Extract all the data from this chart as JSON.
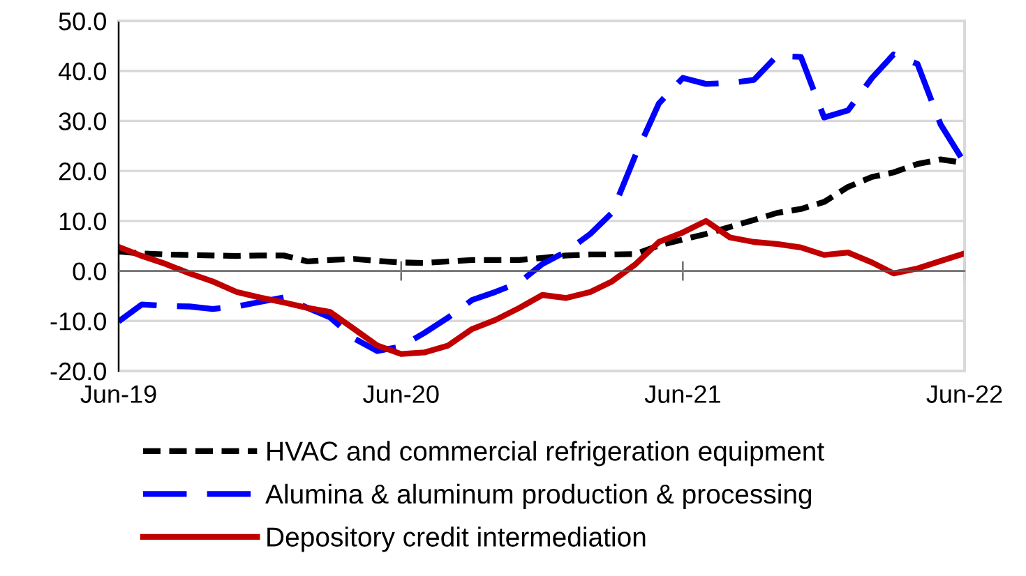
{
  "chart_data": {
    "type": "line",
    "x": [
      "2019-06",
      "2019-07",
      "2019-08",
      "2019-09",
      "2019-10",
      "2019-11",
      "2019-12",
      "2020-01",
      "2020-02",
      "2020-03",
      "2020-04",
      "2020-05",
      "2020-06",
      "2020-07",
      "2020-08",
      "2020-09",
      "2020-10",
      "2020-11",
      "2020-12",
      "2021-01",
      "2021-02",
      "2021-03",
      "2021-04",
      "2021-05",
      "2021-06",
      "2021-07",
      "2021-08",
      "2021-09",
      "2021-10",
      "2021-11",
      "2021-12",
      "2022-01",
      "2022-02",
      "2022-03",
      "2022-04",
      "2022-05",
      "2022-06"
    ],
    "series": [
      {
        "name": "HVAC and commercial refrigeration equipment",
        "color": "#000000",
        "line_style": "dotted",
        "values": [
          3.9,
          3.5,
          3.3,
          3.2,
          3.1,
          3.0,
          3.1,
          3.1,
          1.9,
          2.2,
          2.4,
          2.0,
          1.7,
          1.6,
          1.9,
          2.2,
          2.2,
          2.2,
          2.6,
          3.1,
          3.3,
          3.3,
          3.4,
          5.1,
          6.3,
          7.4,
          8.8,
          10.2,
          11.6,
          12.4,
          13.8,
          16.8,
          18.8,
          19.7,
          21.4,
          22.3,
          21.6
        ]
      },
      {
        "name": "Alumina & aluminum production & processing",
        "color": "#0000ff",
        "line_style": "dashed",
        "values": [
          -10.1,
          -6.7,
          -7.0,
          -7.1,
          -7.6,
          -7.1,
          -6.2,
          -5.3,
          -7.4,
          -9.3,
          -13.5,
          -16.0,
          -15.1,
          -12.4,
          -9.3,
          -5.8,
          -4.2,
          -2.3,
          1.4,
          3.9,
          7.4,
          11.6,
          23.3,
          33.5,
          38.6,
          37.4,
          37.6,
          38.2,
          43.0,
          42.8,
          30.7,
          32.1,
          38.6,
          43.3,
          41.4,
          29.3,
          21.6
        ]
      },
      {
        "name": "Depository credit intermediation",
        "color": "#c00000",
        "line_style": "solid",
        "values": [
          4.8,
          3.0,
          1.4,
          -0.5,
          -2.1,
          -4.2,
          -5.3,
          -6.3,
          -7.4,
          -8.2,
          -11.6,
          -14.9,
          -16.6,
          -16.3,
          -14.9,
          -11.6,
          -9.8,
          -7.4,
          -4.8,
          -5.4,
          -4.2,
          -2.1,
          1.4,
          5.8,
          7.7,
          10.0,
          6.7,
          5.8,
          5.4,
          4.7,
          3.2,
          3.7,
          1.7,
          -0.5,
          0.5,
          2.0,
          3.5
        ]
      }
    ],
    "xlim": [
      "2019-06",
      "2022-06"
    ],
    "xticks": [
      {
        "value": "2019-06",
        "label": "Jun-19"
      },
      {
        "value": "2020-06",
        "label": "Jun-20"
      },
      {
        "value": "2021-06",
        "label": "Jun-21"
      },
      {
        "value": "2022-06",
        "label": "Jun-22"
      }
    ],
    "ylim": [
      -20,
      50
    ],
    "yticks": [
      {
        "value": -20,
        "label": "-20.0"
      },
      {
        "value": -10,
        "label": "-10.0"
      },
      {
        "value": 0,
        "label": "0.0"
      },
      {
        "value": 10,
        "label": "10.0"
      },
      {
        "value": 20,
        "label": "20.0"
      },
      {
        "value": 30,
        "label": "30.0"
      },
      {
        "value": 40,
        "label": "40.0"
      },
      {
        "value": 50,
        "label": "50.0"
      }
    ],
    "grid": "y",
    "legend": "bottom",
    "marker": "none"
  }
}
